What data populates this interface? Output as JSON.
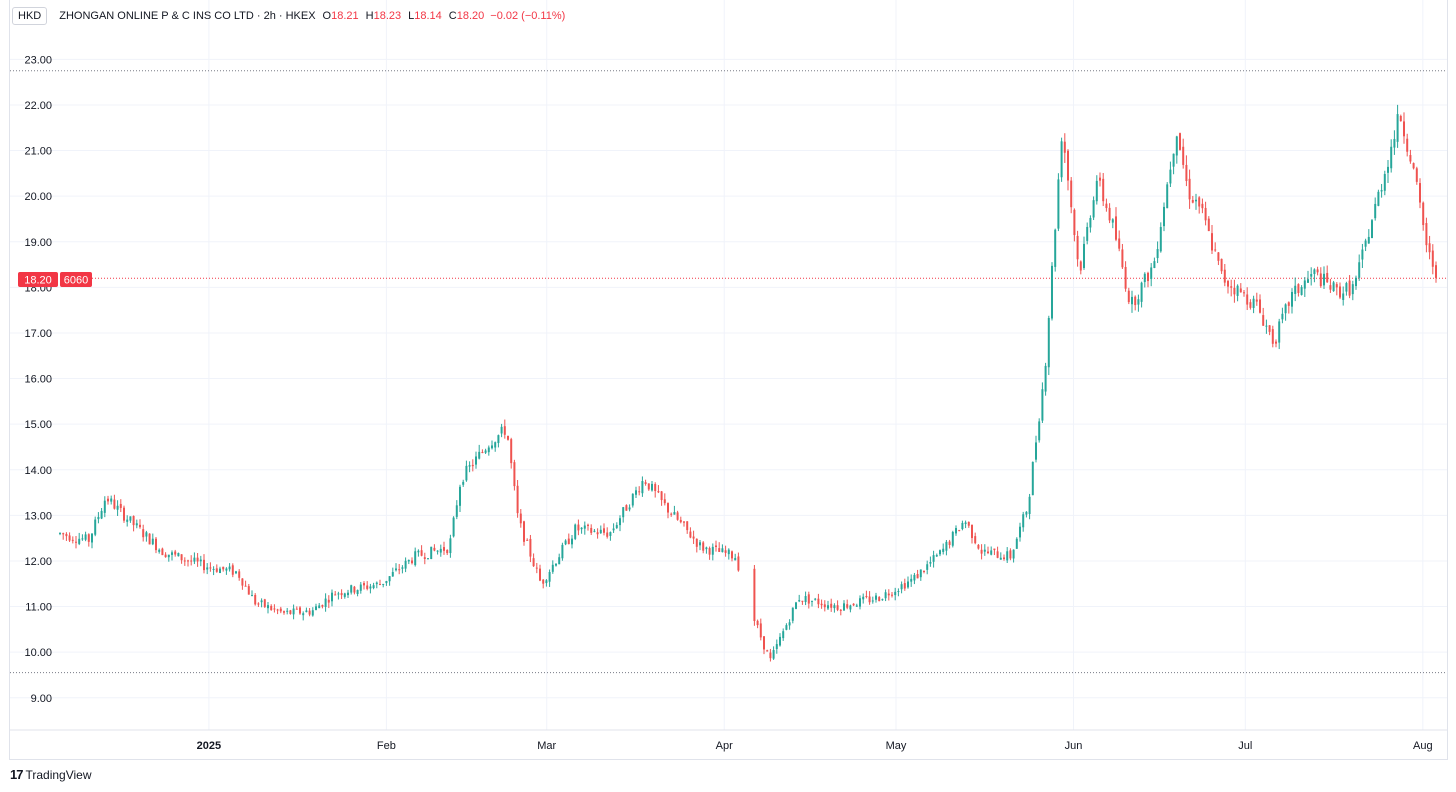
{
  "header": {
    "currency": "HKD",
    "symbol": "ZHONGAN ONLINE P & C INS CO LTD · 2h · HKEX",
    "open_label": "O",
    "open": "18.21",
    "high_label": "H",
    "high": "18.23",
    "low_label": "L",
    "low": "18.14",
    "close_label": "C",
    "close": "18.20",
    "change": "−0.02 (−0.11%)"
  },
  "price_badge": {
    "price": "18.20",
    "code": "6060"
  },
  "brand": {
    "logo": "17",
    "name": "TradingView"
  },
  "colors": {
    "up": "#26a69a",
    "down": "#ef5350",
    "grid": "#f0f3fa",
    "badge": "#f23645"
  },
  "chart_data": {
    "type": "candlestick",
    "ylim": [
      8.6,
      23.6
    ],
    "y_ticks": [
      9,
      10,
      11,
      12,
      13,
      14,
      15,
      16,
      17,
      18,
      19,
      20,
      21,
      22,
      23
    ],
    "y_tick_labels": [
      "9.00",
      "10.00",
      "11.00",
      "12.00",
      "13.00",
      "14.00",
      "15.00",
      "16.00",
      "17.00",
      "18.00",
      "19.00",
      "20.00",
      "21.00",
      "22.00",
      "23.00"
    ],
    "x_labels": [
      "2025",
      "Feb",
      "Mar",
      "Apr",
      "May",
      "Jun",
      "Jul",
      "Aug"
    ],
    "x_label_dates": [
      "2025-01-01",
      "2025-02-01",
      "2025-03-01",
      "2025-04-01",
      "2025-05-01",
      "2025-06-01",
      "2025-07-01",
      "2025-08-01"
    ],
    "current_price": 18.2,
    "range_high": 22.75,
    "range_low": 9.55,
    "price_path": [
      [
        "2024-12-06",
        12.6
      ],
      [
        "2024-12-11",
        12.45
      ],
      [
        "2024-12-14",
        13.4
      ],
      [
        "2024-12-18",
        12.9
      ],
      [
        "2024-12-24",
        12.2
      ],
      [
        "2024-12-31",
        11.9
      ],
      [
        "2025-01-06",
        11.75
      ],
      [
        "2025-01-09",
        11.1
      ],
      [
        "2025-01-14",
        10.85
      ],
      [
        "2025-01-19",
        10.9
      ],
      [
        "2025-01-23",
        11.3
      ],
      [
        "2025-01-31",
        11.5
      ],
      [
        "2025-02-06",
        12.1
      ],
      [
        "2025-02-12",
        12.3
      ],
      [
        "2025-02-14",
        13.8
      ],
      [
        "2025-02-19",
        14.6
      ],
      [
        "2025-02-22",
        14.9
      ],
      [
        "2025-02-24",
        12.9
      ],
      [
        "2025-02-28",
        11.5
      ],
      [
        "2025-03-06",
        12.7
      ],
      [
        "2025-03-12",
        12.6
      ],
      [
        "2025-03-18",
        13.8
      ],
      [
        "2025-03-21",
        13.3
      ],
      [
        "2025-03-28",
        12.3
      ],
      [
        "2025-04-03",
        12.1
      ],
      [
        "2025-04-06",
        10.8
      ],
      [
        "2025-04-09",
        9.8
      ],
      [
        "2025-04-14",
        11.2
      ],
      [
        "2025-04-21",
        11.0
      ],
      [
        "2025-04-28",
        11.2
      ],
      [
        "2025-05-04",
        11.6
      ],
      [
        "2025-05-09",
        12.2
      ],
      [
        "2025-05-13",
        12.9
      ],
      [
        "2025-05-16",
        12.2
      ],
      [
        "2025-05-21",
        12.1
      ],
      [
        "2025-05-24",
        13.2
      ],
      [
        "2025-05-27",
        16.2
      ],
      [
        "2025-05-30",
        21.5
      ],
      [
        "2025-06-02",
        18.3
      ],
      [
        "2025-06-05",
        20.4
      ],
      [
        "2025-06-08",
        19.3
      ],
      [
        "2025-06-11",
        17.6
      ],
      [
        "2025-06-15",
        18.5
      ],
      [
        "2025-06-19",
        21.5
      ],
      [
        "2025-06-21",
        20.1
      ],
      [
        "2025-06-23",
        19.8
      ],
      [
        "2025-06-27",
        18.2
      ],
      [
        "2025-07-03",
        17.6
      ],
      [
        "2025-07-06",
        16.8
      ],
      [
        "2025-07-09",
        17.8
      ],
      [
        "2025-07-13",
        18.3
      ],
      [
        "2025-07-17",
        17.9
      ],
      [
        "2025-07-20",
        18.0
      ],
      [
        "2025-07-24",
        19.9
      ],
      [
        "2025-07-28",
        21.8
      ],
      [
        "2025-07-30",
        20.8
      ],
      [
        "2025-08-02",
        18.7
      ],
      [
        "2025-08-04",
        18.2
      ]
    ]
  }
}
